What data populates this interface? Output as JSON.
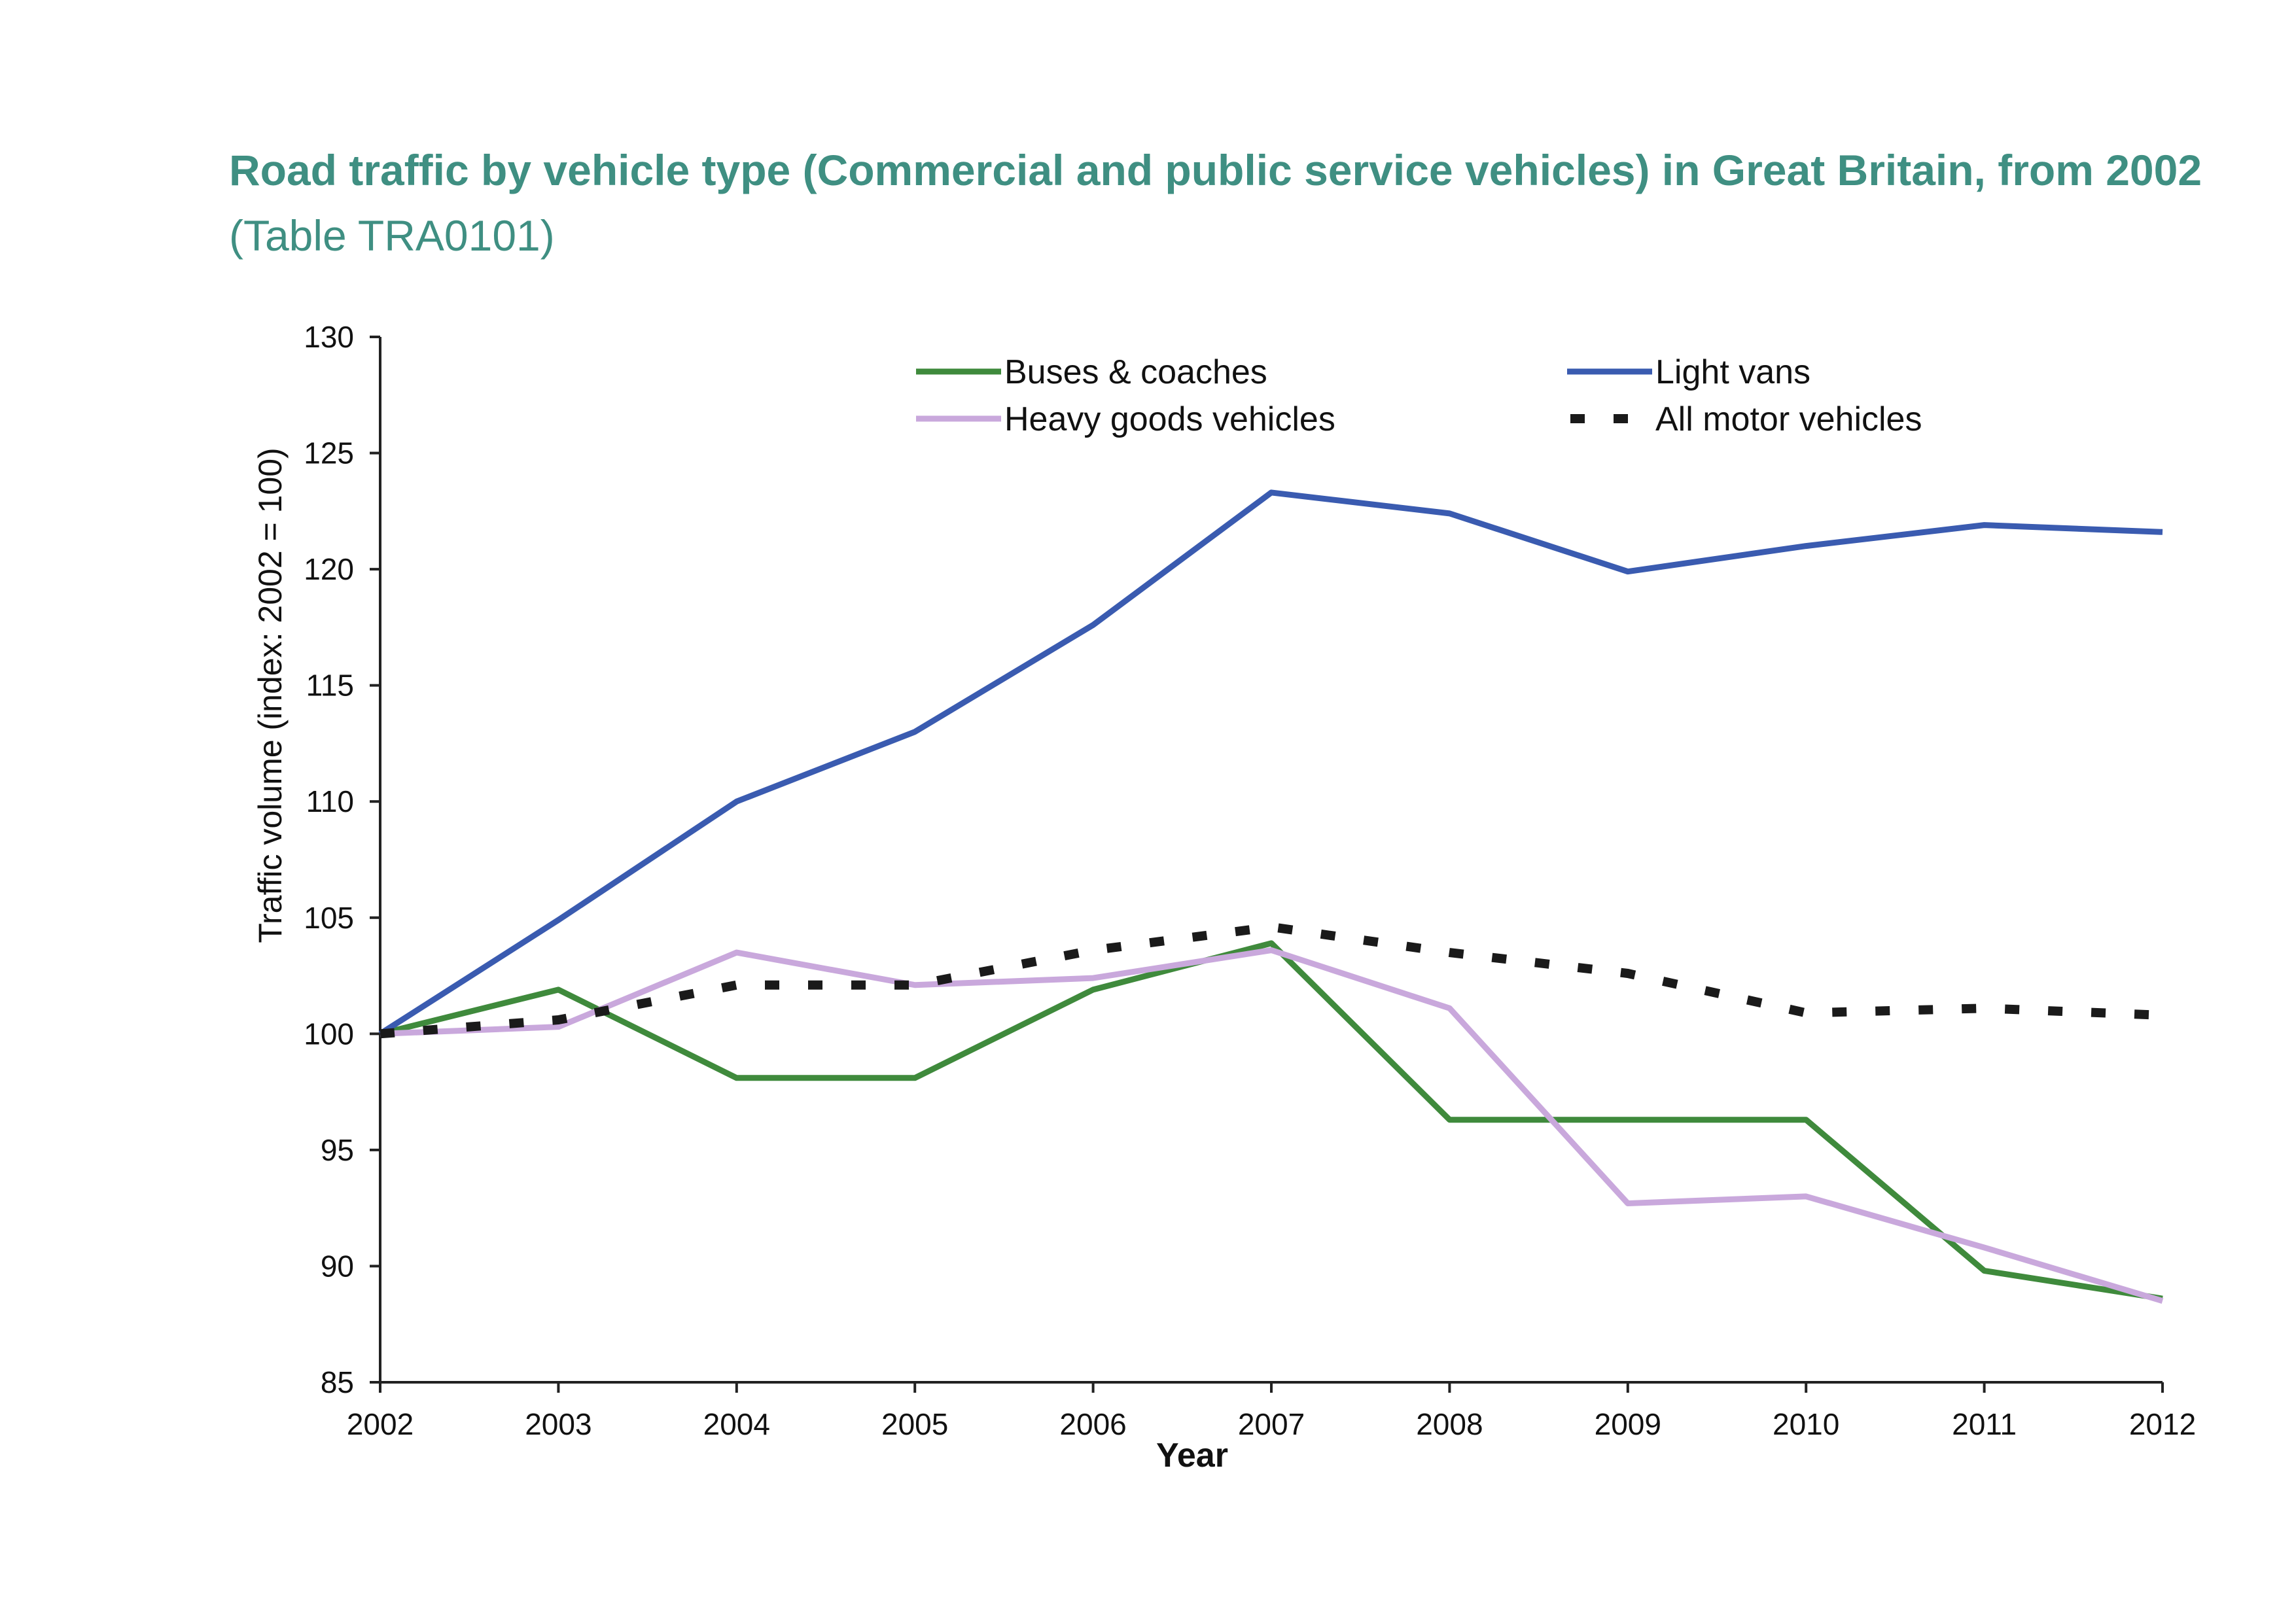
{
  "title": {
    "bold_part": "Road traffic by vehicle type (Commercial and public service vehicles) in Great Britain, from 2002",
    "normal_part": "(Table TRA0101)"
  },
  "chart_data": {
    "type": "line",
    "title": "Road traffic by vehicle type (Commercial and public service vehicles) in Great Britain, from 2002 (Table TRA0101)",
    "xlabel": "Year",
    "ylabel": "Traffic volume (index: 2002 = 100)",
    "x": [
      "2002",
      "2003",
      "2004",
      "2005",
      "2006",
      "2007",
      "2008",
      "2009",
      "2010",
      "2011",
      "2012"
    ],
    "ylim": [
      85,
      130
    ],
    "yticks": [
      85,
      90,
      95,
      100,
      105,
      110,
      115,
      120,
      125,
      130
    ],
    "grid": false,
    "legend_position": "top",
    "series": [
      {
        "name": "Buses & coaches",
        "color": "#3f8a3c",
        "style": "solid",
        "values": [
          100,
          101.9,
          98.1,
          98.1,
          101.9,
          103.9,
          96.3,
          96.3,
          96.3,
          89.8,
          88.6
        ]
      },
      {
        "name": "Light vans",
        "color": "#3a5bb0",
        "style": "solid",
        "values": [
          100,
          104.9,
          110.0,
          113.0,
          117.6,
          123.3,
          122.4,
          119.9,
          121.0,
          121.9,
          121.6
        ]
      },
      {
        "name": "Heavy goods vehicles",
        "color": "#c9a8dc",
        "style": "solid",
        "values": [
          100,
          100.3,
          103.5,
          102.1,
          102.4,
          103.6,
          101.1,
          92.7,
          93.0,
          90.8,
          88.5
        ]
      },
      {
        "name": "All motor vehicles",
        "color": "#1a1a1a",
        "style": "dashed",
        "values": [
          100,
          100.6,
          102.1,
          102.1,
          103.6,
          104.6,
          103.5,
          102.6,
          100.9,
          101.1,
          100.8
        ]
      }
    ]
  }
}
